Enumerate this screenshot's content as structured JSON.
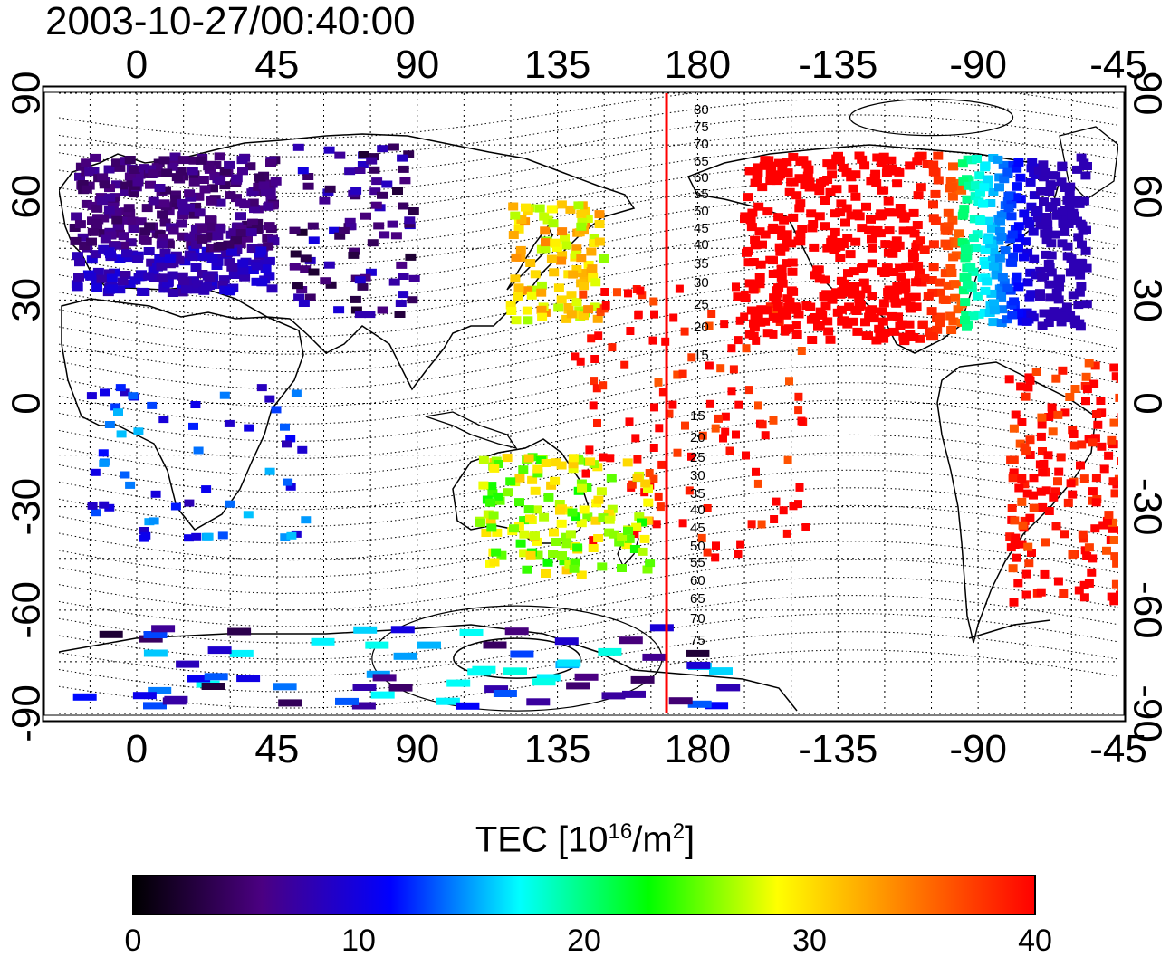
{
  "title": "2003-10-27/00:40:00",
  "top_lon_labels": [
    "0",
    "45",
    "90",
    "135",
    "180",
    "-135",
    "-90",
    "-45"
  ],
  "bottom_lon_labels": [
    "0",
    "45",
    "90",
    "135",
    "180",
    "-135",
    "-90",
    "-45"
  ],
  "lat_labels": [
    "90",
    "60",
    "30",
    "0",
    "-30",
    "-60",
    "-90"
  ],
  "contour_labels_north": [
    "80",
    "75",
    "70",
    "65",
    "60",
    "55",
    "50",
    "45",
    "40",
    "35",
    "30",
    "25",
    "20",
    "15"
  ],
  "contour_labels_south": [
    "15",
    "20",
    "25",
    "30",
    "35",
    "40",
    "45",
    "50",
    "55",
    "60",
    "65",
    "70",
    "75"
  ],
  "colorbar": {
    "title_main": "TEC  [10",
    "title_exp1": "16",
    "title_mid": "/m",
    "title_exp2": "2",
    "title_end": "]",
    "ticks": [
      "0",
      "10",
      "20",
      "30",
      "40"
    ],
    "stops": [
      "#000000",
      "#4b0082",
      "#0000ff",
      "#00ffff",
      "#00ff00",
      "#ffff00",
      "#ff7f00",
      "#ff0000"
    ]
  },
  "meridian_line_color": "#ff0000",
  "map_data": {
    "projection": "equirectangular",
    "lon_range_deg": [
      -25,
      315
    ],
    "lat_range_deg": [
      -90,
      90
    ],
    "meridian_marker_lon": 170,
    "tec_range": [
      0,
      40
    ],
    "regions": [
      {
        "name": "europe",
        "tec": 5
      },
      {
        "name": "central-asia",
        "tec": 6
      },
      {
        "name": "japan",
        "tec": 30
      },
      {
        "name": "pacific",
        "tec": 40
      },
      {
        "name": "north-america-west",
        "tec": 40
      },
      {
        "name": "north-america-east",
        "tec": 14
      },
      {
        "name": "south-america",
        "tec": 40
      },
      {
        "name": "australia",
        "tec": 27
      },
      {
        "name": "southern-africa",
        "tec": 12
      },
      {
        "name": "antarctica",
        "tec": 10
      }
    ]
  }
}
